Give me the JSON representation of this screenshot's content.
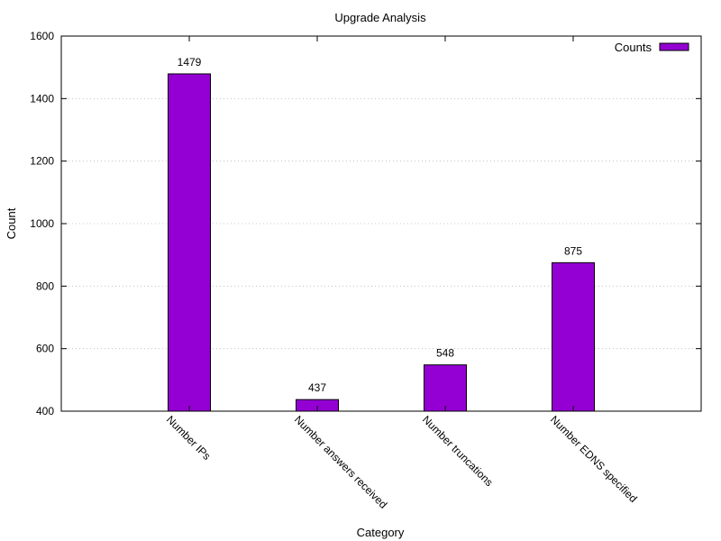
{
  "chart_data": {
    "type": "bar",
    "title": "Upgrade Analysis",
    "xlabel": "Category",
    "ylabel": "Count",
    "categories": [
      "Number IPs",
      "Number answers received",
      "Number truncations",
      "Number EDNS specified"
    ],
    "series": [
      {
        "name": "Counts",
        "values": [
          1479,
          437,
          548,
          875
        ]
      }
    ],
    "data_labels": [
      "1479",
      "437",
      "548",
      "875"
    ],
    "ylim": [
      400,
      1600
    ],
    "yticks": [
      400,
      600,
      800,
      1000,
      1200,
      1400,
      1600
    ],
    "grid": true,
    "legend_position": "top-right",
    "colors": {
      "bar": "#9400d3"
    }
  }
}
